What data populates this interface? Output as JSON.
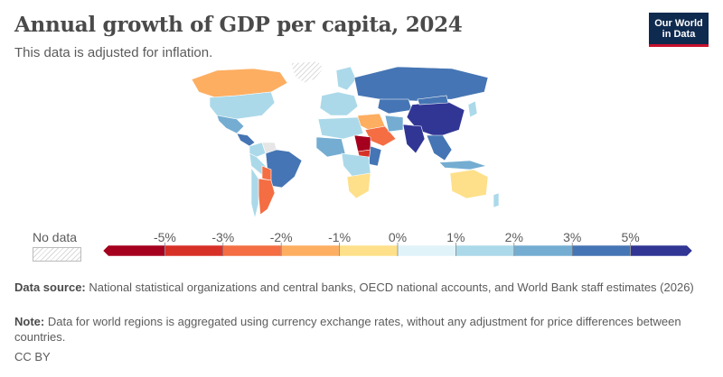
{
  "header": {
    "title": "Annual growth of GDP per capita, 2024",
    "subtitle": "This data is adjusted for inflation."
  },
  "logo": {
    "line1": "Our World",
    "line2": "in Data"
  },
  "legend": {
    "no_data_label": "No data",
    "ticks": [
      "-5%",
      "-3%",
      "-2%",
      "-1%",
      "0%",
      "1%",
      "2%",
      "3%",
      "5%"
    ],
    "colors": [
      "#a5001e",
      "#d73027",
      "#f46d43",
      "#fdae61",
      "#fee08b",
      "#e0f3f8",
      "#abd9e9",
      "#74add1",
      "#4575b4",
      "#313695"
    ]
  },
  "footer": {
    "source_label": "Data source:",
    "source_text": "National statistical organizations and central banks, OECD national accounts, and World Bank staff estimates (2026)",
    "note_label": "Note:",
    "note_text": "Data for world regions is aggregated using currency exchange rates, without any adjustment for price differences between countries.",
    "license": "CC BY"
  },
  "map": {
    "regions": [
      {
        "name": "greenland",
        "color": "#e6e6e6",
        "hatched": true
      },
      {
        "name": "canada",
        "color": "#fdae61"
      },
      {
        "name": "usa",
        "color": "#abd9e9"
      },
      {
        "name": "mexico",
        "color": "#74add1"
      },
      {
        "name": "central-america",
        "color": "#4575b4"
      },
      {
        "name": "colombia",
        "color": "#abd9e9"
      },
      {
        "name": "venezuela",
        "color": "#e6e6e6"
      },
      {
        "name": "brazil",
        "color": "#4575b4"
      },
      {
        "name": "peru",
        "color": "#abd9e9"
      },
      {
        "name": "bolivia",
        "color": "#f46d43"
      },
      {
        "name": "argentina",
        "color": "#f46d43"
      },
      {
        "name": "chile",
        "color": "#abd9e9"
      },
      {
        "name": "europe",
        "color": "#abd9e9"
      },
      {
        "name": "scandinavia",
        "color": "#abd9e9"
      },
      {
        "name": "russia",
        "color": "#4575b4"
      },
      {
        "name": "kazakhstan",
        "color": "#4575b4"
      },
      {
        "name": "china",
        "color": "#313695"
      },
      {
        "name": "mongolia",
        "color": "#4575b4"
      },
      {
        "name": "india",
        "color": "#313695"
      },
      {
        "name": "southeast-asia",
        "color": "#4575b4"
      },
      {
        "name": "indonesia",
        "color": "#74add1"
      },
      {
        "name": "japan",
        "color": "#abd9e9"
      },
      {
        "name": "middle-east",
        "color": "#fdae61"
      },
      {
        "name": "saudi-arabia",
        "color": "#f46d43"
      },
      {
        "name": "iran",
        "color": "#74add1"
      },
      {
        "name": "north-africa",
        "color": "#abd9e9"
      },
      {
        "name": "west-africa",
        "color": "#74add1"
      },
      {
        "name": "sudan",
        "color": "#a5001e"
      },
      {
        "name": "south-sudan",
        "color": "#d73027"
      },
      {
        "name": "east-africa",
        "color": "#4575b4"
      },
      {
        "name": "central-africa",
        "color": "#abd9e9"
      },
      {
        "name": "southern-africa",
        "color": "#fee08b"
      },
      {
        "name": "australia",
        "color": "#fee08b"
      },
      {
        "name": "new-zealand",
        "color": "#abd9e9"
      }
    ]
  }
}
